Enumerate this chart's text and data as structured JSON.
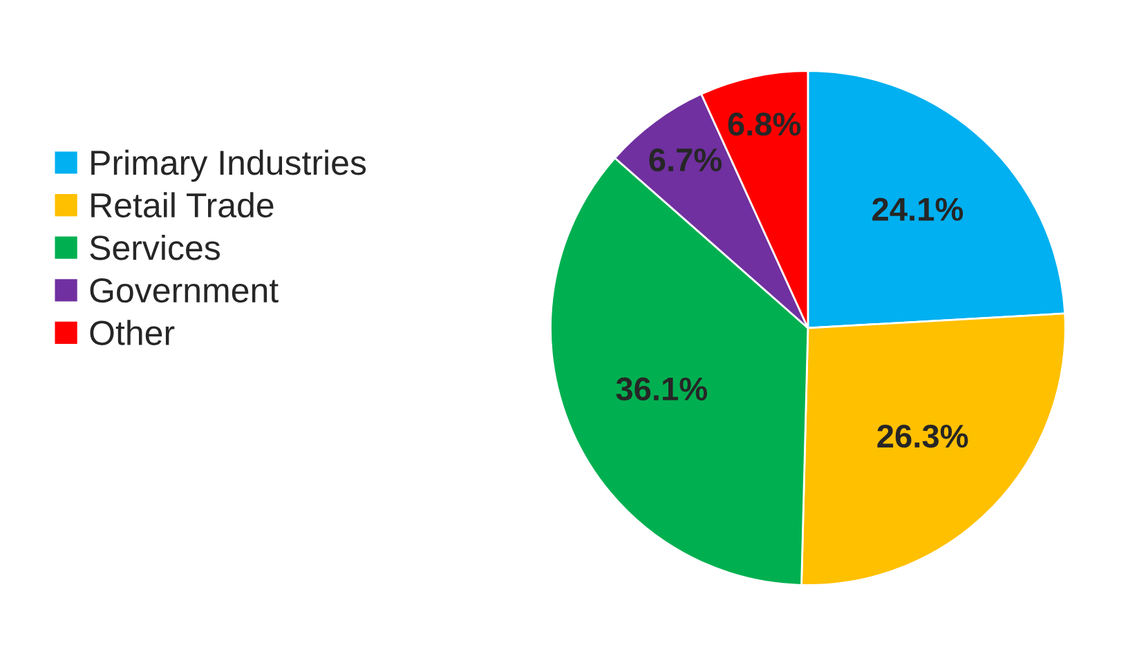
{
  "chart_data": {
    "type": "pie",
    "categories": [
      "Primary Industries",
      "Retail Trade",
      "Services",
      "Government",
      "Other"
    ],
    "values": [
      24.1,
      26.3,
      36.1,
      6.7,
      6.8
    ],
    "colors": [
      "#00b0f0",
      "#ffc000",
      "#00b050",
      "#7030a0",
      "#ff0000"
    ],
    "value_labels": [
      "24.1%",
      "26.3%",
      "36.1%",
      "6.7%",
      "6.8%"
    ],
    "legend": "left"
  }
}
